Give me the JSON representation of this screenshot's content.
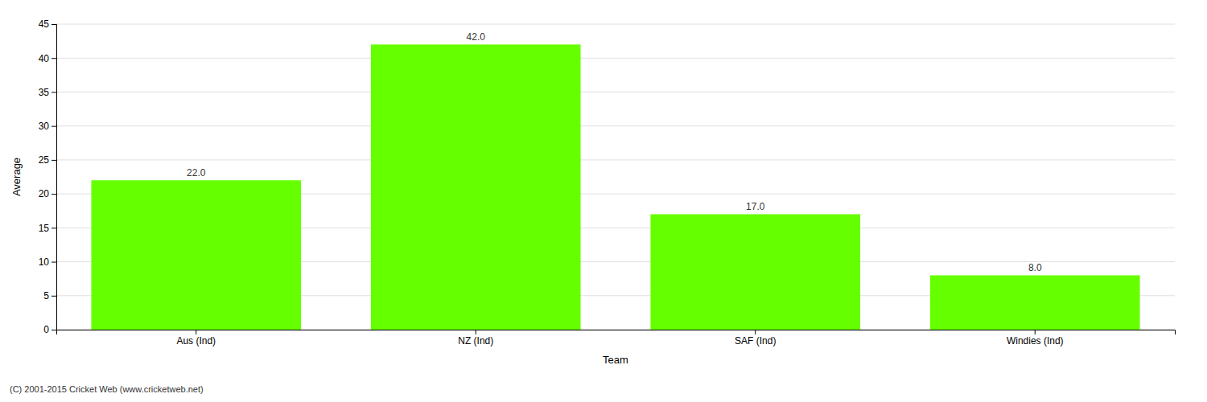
{
  "chart_data": {
    "type": "bar",
    "categories": [
      "Aus (Ind)",
      "NZ (Ind)",
      "SAF (Ind)",
      "Windies (Ind)"
    ],
    "values": [
      22.0,
      42.0,
      17.0,
      8.0
    ],
    "value_labels": [
      "22.0",
      "42.0",
      "17.0",
      "8.0"
    ],
    "data_labels": true,
    "color": "#66ff00",
    "xlabel": "Team",
    "ylabel": "Average",
    "ylim": [
      0,
      45
    ],
    "yticks": [
      0,
      5,
      10,
      15,
      20,
      25,
      30,
      35,
      40,
      45
    ],
    "grid": true,
    "annotations": [
      "(C) 2001-2015 Cricket Web (www.cricketweb.net)"
    ]
  }
}
